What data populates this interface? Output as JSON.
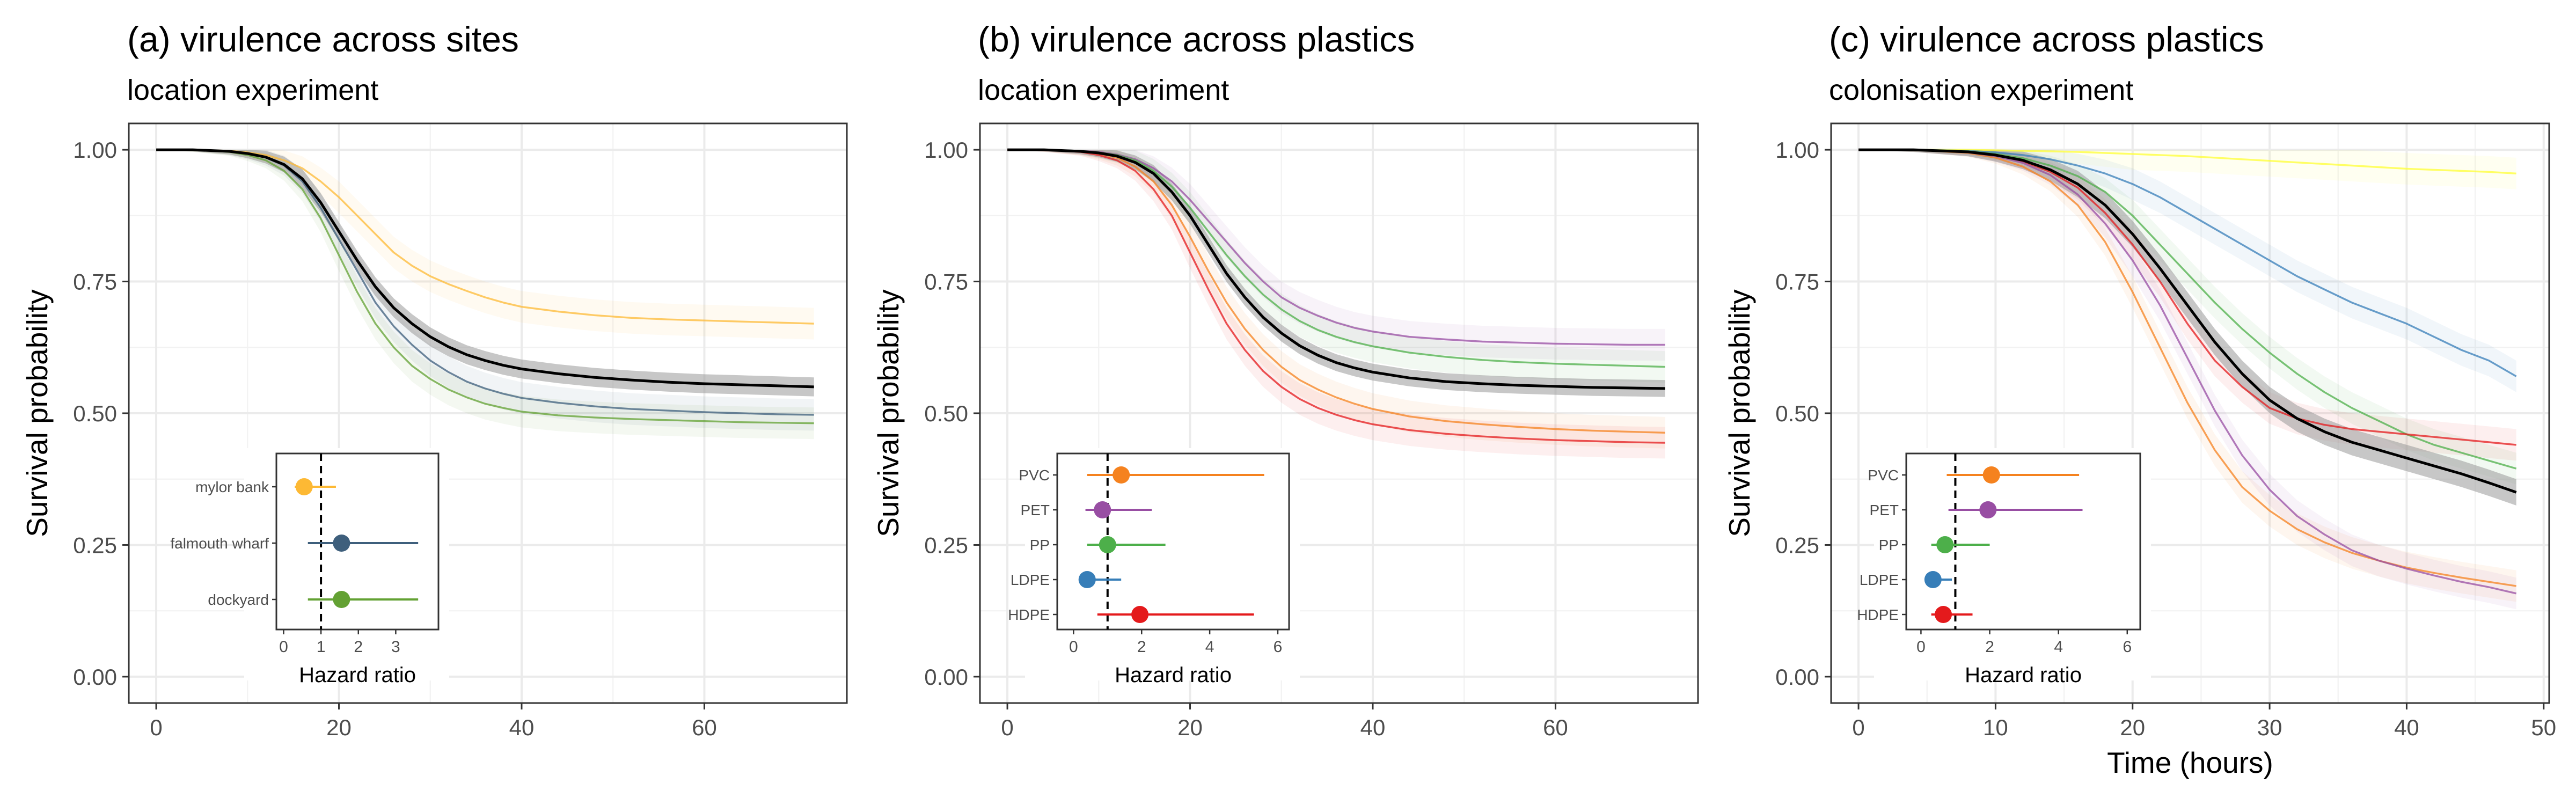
{
  "figure": {
    "ylabel": "Survival probability",
    "xlabel_panel_c": "Time (hours)",
    "inset_xlabel": "Hazard ratio"
  },
  "colors": {
    "overall": "#000000",
    "ribbon": "#999999",
    "mylor bank": "#FDB934",
    "falmouth wharf": "#3E5F7C",
    "dockyard": "#63A133",
    "PVC": "#F5821F",
    "PET": "#984EA3",
    "PP": "#4DAF4A",
    "LDPE": "#377EB8",
    "HDPE": "#E41A1C",
    "yellow_series": "#FFFF33"
  },
  "chart_data": [
    {
      "type": "line",
      "title": "(a) virulence across sites",
      "subtitle": "location experiment",
      "xlabel": "",
      "ylabel": "Survival probability",
      "xlim": [
        -3,
        75.6
      ],
      "ylim": [
        -0.05,
        1.05
      ],
      "xticks": [
        0,
        20,
        40,
        60
      ],
      "yticks": [
        0.0,
        0.25,
        0.5,
        0.75,
        1.0
      ],
      "ytick_labels": [
        "0.00",
        "0.25",
        "0.50",
        "0.75",
        "1.00"
      ],
      "grid": true,
      "x": [
        0,
        4,
        8,
        10,
        12,
        14,
        16,
        18,
        20,
        22,
        24,
        26,
        28,
        30,
        32,
        34,
        36,
        38,
        40,
        44,
        48,
        52,
        56,
        60,
        64,
        68,
        72
      ],
      "series": [
        {
          "key": "mylor bank",
          "values": [
            1.0,
            1.0,
            0.998,
            0.995,
            0.99,
            0.98,
            0.965,
            0.94,
            0.91,
            0.875,
            0.84,
            0.805,
            0.78,
            0.76,
            0.745,
            0.732,
            0.72,
            0.71,
            0.702,
            0.693,
            0.686,
            0.681,
            0.678,
            0.676,
            0.674,
            0.672,
            0.67
          ]
        },
        {
          "key": "falmouth wharf",
          "values": [
            1.0,
            1.0,
            0.997,
            0.993,
            0.985,
            0.97,
            0.94,
            0.89,
            0.83,
            0.77,
            0.71,
            0.665,
            0.63,
            0.6,
            0.578,
            0.56,
            0.547,
            0.537,
            0.529,
            0.52,
            0.513,
            0.508,
            0.505,
            0.502,
            0.5,
            0.498,
            0.497
          ]
        },
        {
          "key": "dockyard",
          "values": [
            1.0,
            1.0,
            0.996,
            0.99,
            0.98,
            0.96,
            0.925,
            0.87,
            0.8,
            0.73,
            0.67,
            0.625,
            0.59,
            0.565,
            0.545,
            0.53,
            0.518,
            0.51,
            0.503,
            0.496,
            0.492,
            0.489,
            0.487,
            0.485,
            0.483,
            0.482,
            0.481
          ]
        },
        {
          "key": "overall",
          "values": [
            1.0,
            1.0,
            0.997,
            0.993,
            0.986,
            0.972,
            0.945,
            0.9,
            0.845,
            0.79,
            0.74,
            0.7,
            0.67,
            0.645,
            0.626,
            0.611,
            0.6,
            0.591,
            0.584,
            0.575,
            0.568,
            0.563,
            0.559,
            0.556,
            0.554,
            0.552,
            0.55
          ],
          "band": 0.018
        }
      ],
      "inset": {
        "xlabel": "Hazard ratio",
        "xlim": [
          -0.15,
          4.1
        ],
        "xticks": [
          0,
          1,
          2,
          3
        ],
        "xtick_labels": [
          "0",
          "1",
          "2",
          "3"
        ],
        "ref_line": 1,
        "rows": [
          {
            "label": "mylor bank",
            "colorKey": "mylor bank",
            "estimate": 0.55,
            "lower": 0.3,
            "upper": 1.4
          },
          {
            "label": "falmouth wharf",
            "colorKey": "falmouth wharf",
            "estimate": 1.55,
            "lower": 0.65,
            "upper": 3.6
          },
          {
            "label": "dockyard",
            "colorKey": "dockyard",
            "estimate": 1.55,
            "lower": 0.65,
            "upper": 3.6
          }
        ]
      }
    },
    {
      "type": "line",
      "title": "(b) virulence across plastics",
      "subtitle": "location experiment",
      "xlabel": "",
      "ylabel": "Survival probability",
      "xlim": [
        -3,
        75.6
      ],
      "ylim": [
        -0.05,
        1.05
      ],
      "xticks": [
        0,
        20,
        40,
        60
      ],
      "yticks": [
        0.0,
        0.25,
        0.5,
        0.75,
        1.0
      ],
      "ytick_labels": [
        "0.00",
        "0.25",
        "0.50",
        "0.75",
        "1.00"
      ],
      "grid": true,
      "x": [
        0,
        4,
        8,
        10,
        12,
        14,
        16,
        18,
        20,
        22,
        24,
        26,
        28,
        30,
        32,
        34,
        36,
        38,
        40,
        44,
        48,
        52,
        56,
        60,
        64,
        68,
        72
      ],
      "series": [
        {
          "key": "PET",
          "values": [
            1.0,
            1.0,
            0.998,
            0.996,
            0.991,
            0.982,
            0.965,
            0.94,
            0.905,
            0.865,
            0.825,
            0.785,
            0.75,
            0.72,
            0.7,
            0.685,
            0.672,
            0.662,
            0.655,
            0.645,
            0.64,
            0.636,
            0.634,
            0.632,
            0.631,
            0.63,
            0.63
          ]
        },
        {
          "key": "PP",
          "values": [
            1.0,
            1.0,
            0.998,
            0.995,
            0.99,
            0.98,
            0.96,
            0.93,
            0.89,
            0.845,
            0.8,
            0.76,
            0.725,
            0.697,
            0.675,
            0.658,
            0.645,
            0.635,
            0.627,
            0.615,
            0.607,
            0.601,
            0.597,
            0.594,
            0.592,
            0.59,
            0.588
          ]
        },
        {
          "key": "PVC",
          "values": [
            1.0,
            1.0,
            0.997,
            0.993,
            0.985,
            0.968,
            0.94,
            0.895,
            0.835,
            0.77,
            0.71,
            0.66,
            0.62,
            0.588,
            0.563,
            0.545,
            0.53,
            0.518,
            0.508,
            0.494,
            0.485,
            0.479,
            0.474,
            0.47,
            0.467,
            0.465,
            0.463
          ]
        },
        {
          "key": "HDPE",
          "values": [
            1.0,
            1.0,
            0.996,
            0.99,
            0.98,
            0.96,
            0.925,
            0.875,
            0.805,
            0.735,
            0.67,
            0.62,
            0.58,
            0.55,
            0.527,
            0.51,
            0.497,
            0.487,
            0.479,
            0.468,
            0.461,
            0.456,
            0.452,
            0.449,
            0.447,
            0.445,
            0.444
          ]
        },
        {
          "key": "overall",
          "values": [
            1.0,
            1.0,
            0.997,
            0.994,
            0.988,
            0.976,
            0.955,
            0.92,
            0.875,
            0.82,
            0.765,
            0.72,
            0.682,
            0.652,
            0.628,
            0.61,
            0.596,
            0.586,
            0.578,
            0.567,
            0.56,
            0.556,
            0.553,
            0.551,
            0.549,
            0.548,
            0.547
          ],
          "band": 0.016
        }
      ],
      "inset": {
        "xlabel": "Hazard ratio",
        "xlim": [
          -0.4,
          6.3
        ],
        "xticks": [
          0,
          2,
          4,
          6
        ],
        "xtick_labels": [
          "0",
          "2",
          "4",
          "6"
        ],
        "ref_line": 1,
        "rows": [
          {
            "label": "PVC",
            "colorKey": "PVC",
            "estimate": 1.4,
            "lower": 0.4,
            "upper": 5.6
          },
          {
            "label": "PET",
            "colorKey": "PET",
            "estimate": 0.85,
            "lower": 0.35,
            "upper": 2.3
          },
          {
            "label": "PP",
            "colorKey": "PP",
            "estimate": 1.0,
            "lower": 0.4,
            "upper": 2.7
          },
          {
            "label": "LDPE",
            "colorKey": "LDPE",
            "estimate": 0.4,
            "lower": 0.15,
            "upper": 1.4
          },
          {
            "label": "HDPE",
            "colorKey": "HDPE",
            "estimate": 1.95,
            "lower": 0.7,
            "upper": 5.3
          }
        ]
      }
    },
    {
      "type": "line",
      "title": "(c) virulence across plastics",
      "subtitle": "colonisation experiment",
      "xlabel": "Time (hours)",
      "ylabel": "Survival probability",
      "xlim": [
        -2,
        50.4
      ],
      "ylim": [
        -0.05,
        1.05
      ],
      "xticks": [
        0,
        10,
        20,
        30,
        40,
        50
      ],
      "yticks": [
        0.0,
        0.25,
        0.5,
        0.75,
        1.0
      ],
      "ytick_labels": [
        "0.00",
        "0.25",
        "0.50",
        "0.75",
        "1.00"
      ],
      "grid": true,
      "x": [
        0,
        4,
        8,
        10,
        12,
        14,
        16,
        18,
        20,
        22,
        24,
        26,
        28,
        30,
        32,
        34,
        36,
        38,
        40,
        42,
        44,
        46,
        48
      ],
      "series": [
        {
          "key": "yellow_series",
          "values": [
            1.0,
            1.0,
            1.0,
            0.999,
            0.998,
            0.997,
            0.996,
            0.994,
            0.992,
            0.99,
            0.988,
            0.985,
            0.982,
            0.979,
            0.976,
            0.973,
            0.97,
            0.967,
            0.964,
            0.962,
            0.96,
            0.958,
            0.955
          ]
        },
        {
          "key": "LDPE",
          "values": [
            1.0,
            1.0,
            0.998,
            0.995,
            0.99,
            0.982,
            0.97,
            0.955,
            0.935,
            0.91,
            0.88,
            0.85,
            0.82,
            0.79,
            0.76,
            0.735,
            0.71,
            0.69,
            0.67,
            0.645,
            0.62,
            0.6,
            0.57
          ]
        },
        {
          "key": "PP",
          "values": [
            1.0,
            1.0,
            0.997,
            0.992,
            0.984,
            0.97,
            0.95,
            0.92,
            0.875,
            0.82,
            0.765,
            0.71,
            0.66,
            0.615,
            0.575,
            0.54,
            0.51,
            0.485,
            0.46,
            0.44,
            0.425,
            0.41,
            0.395
          ]
        },
        {
          "key": "HDPE",
          "values": [
            1.0,
            1.0,
            0.996,
            0.99,
            0.978,
            0.958,
            0.928,
            0.88,
            0.82,
            0.75,
            0.67,
            0.6,
            0.55,
            0.51,
            0.49,
            0.478,
            0.47,
            0.465,
            0.46,
            0.455,
            0.45,
            0.445,
            0.44
          ]
        },
        {
          "key": "PVC",
          "values": [
            1.0,
            1.0,
            0.994,
            0.985,
            0.968,
            0.94,
            0.895,
            0.825,
            0.73,
            0.625,
            0.52,
            0.43,
            0.36,
            0.315,
            0.28,
            0.255,
            0.235,
            0.22,
            0.207,
            0.197,
            0.188,
            0.18,
            0.172
          ]
        },
        {
          "key": "PET",
          "values": [
            1.0,
            1.0,
            0.995,
            0.988,
            0.975,
            0.952,
            0.915,
            0.86,
            0.79,
            0.705,
            0.605,
            0.505,
            0.42,
            0.355,
            0.305,
            0.27,
            0.24,
            0.22,
            0.205,
            0.192,
            0.18,
            0.17,
            0.158
          ]
        },
        {
          "key": "overall",
          "values": [
            1.0,
            1.0,
            0.996,
            0.99,
            0.98,
            0.962,
            0.935,
            0.895,
            0.84,
            0.775,
            0.705,
            0.635,
            0.575,
            0.525,
            0.49,
            0.465,
            0.445,
            0.43,
            0.415,
            0.4,
            0.385,
            0.368,
            0.35
          ],
          "band": 0.025
        }
      ],
      "inset": {
        "xlabel": "Hazard ratio",
        "xlim": [
          -0.35,
          6.3
        ],
        "xticks": [
          0,
          2,
          4,
          6
        ],
        "xtick_labels": [
          "0",
          "2",
          "4",
          "6"
        ],
        "ref_line": 1,
        "rows": [
          {
            "label": "PVC",
            "colorKey": "PVC",
            "estimate": 2.05,
            "lower": 0.75,
            "upper": 4.6
          },
          {
            "label": "PET",
            "colorKey": "PET",
            "estimate": 1.95,
            "lower": 0.8,
            "upper": 4.7
          },
          {
            "label": "PP",
            "colorKey": "PP",
            "estimate": 0.7,
            "lower": 0.3,
            "upper": 2.0
          },
          {
            "label": "LDPE",
            "colorKey": "LDPE",
            "estimate": 0.35,
            "lower": 0.15,
            "upper": 0.9
          },
          {
            "label": "HDPE",
            "colorKey": "HDPE",
            "estimate": 0.65,
            "lower": 0.3,
            "upper": 1.5
          }
        ]
      }
    }
  ]
}
